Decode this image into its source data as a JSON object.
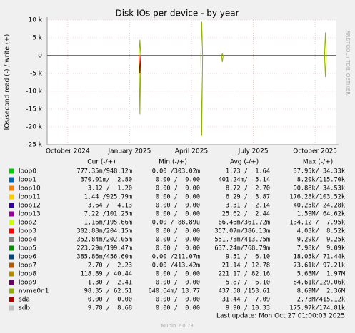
{
  "chart_data": {
    "type": "line",
    "title": "Disk IOs per device - by year",
    "y_label": "IOs/second read (-) / write (+)",
    "side_label": "RRDTOOL / TOBI OETIKER",
    "ylim": [
      -25000,
      10000
    ],
    "yticks": [
      {
        "value": 10000,
        "label": "10 k"
      },
      {
        "value": 5000,
        "label": "5 k"
      },
      0,
      {
        "value": -5000,
        "label": "-5 k"
      },
      {
        "value": -10000,
        "label": "-10 k"
      },
      {
        "value": -15000,
        "label": "-15 k"
      },
      {
        "value": -20000,
        "label": "-20 k"
      },
      {
        "value": -25000,
        "label": "-25 k"
      }
    ],
    "xlim": [
      "2024-09",
      "2025-11"
    ],
    "xticks": [
      {
        "value": "2024-10",
        "label": "October 2024"
      },
      {
        "value": "2025-01",
        "label": "January 2025"
      },
      {
        "value": "2025-04",
        "label": "April 2025"
      },
      {
        "value": "2025-07",
        "label": "July 2025"
      },
      {
        "value": "2025-10",
        "label": "October 2025"
      }
    ],
    "grid": true,
    "x": [
      "2025-01",
      "2025-04",
      "2025-05",
      "2025-10"
    ],
    "columns": [
      "Cur (-/+)",
      "Min (-/+)",
      "Avg (-/+)",
      "Max (-/+)"
    ],
    "series": [
      {
        "name": "loop0",
        "color": "#00cc00",
        "cur": "777.35m/948.12m",
        "min": "0.00 /303.02m",
        "avg": "1.73 /  1.64",
        "max": "37.95k/ 34.33k"
      },
      {
        "name": "loop1",
        "color": "#0066b3",
        "cur": "370.01m/  2.80",
        "min": "0.00 /  0.00",
        "avg": "401.24m/  5.14",
        "max": "8.20k/115.70k"
      },
      {
        "name": "loop10",
        "color": "#ff8000",
        "cur": "3.12 /  1.20",
        "min": "0.00 /  0.00",
        "avg": "8.72 /  2.70",
        "max": "90.88k/ 34.53k"
      },
      {
        "name": "loop11",
        "color": "#ffcc00",
        "cur": "1.44 /925.79m",
        "min": "0.00 /  0.00",
        "avg": "6.29 /  3.87",
        "max": "176.28k/103.52k"
      },
      {
        "name": "loop12",
        "color": "#330099",
        "cur": "3.64 /  4.13",
        "min": "0.00 /  0.00",
        "avg": "3.31 /  2.14",
        "max": "40.25k/ 24.28k"
      },
      {
        "name": "loop13",
        "color": "#990099",
        "cur": "7.22 /101.25m",
        "min": "0.00 /  0.00",
        "avg": "25.62 /  2.44",
        "max": "1.59M/ 64.62k"
      },
      {
        "name": "loop2",
        "color": "#ccff00",
        "cur": "1.16m/195.66m",
        "min": "0.00 / 88.89u",
        "avg": "66.46m/361.72m",
        "max": "134.12 /  7.95k"
      },
      {
        "name": "loop3",
        "color": "#ff0000",
        "cur": "302.88m/204.15m",
        "min": "0.00 /  0.00",
        "avg": "357.07m/386.13m",
        "max": "4.03k/  8.52k"
      },
      {
        "name": "loop4",
        "color": "#808080",
        "cur": "352.84m/202.05m",
        "min": "0.00 /  0.00",
        "avg": "551.78m/413.75m",
        "max": "9.29k/  9.25k"
      },
      {
        "name": "loop5",
        "color": "#008f00",
        "cur": "223.29m/199.47m",
        "min": "0.00 /  0.00",
        "avg": "637.24m/768.79m",
        "max": "7.98k/  9.09k"
      },
      {
        "name": "loop6",
        "color": "#00487d",
        "cur": "385.86m/456.60m",
        "min": "0.00 /211.07m",
        "avg": "9.51 /  6.10",
        "max": "18.05k/ 71.44k"
      },
      {
        "name": "loop7",
        "color": "#b35a00",
        "cur": "2.70 /  2.23",
        "min": "0.00 /413.42m",
        "avg": "21.14 / 12.78",
        "max": "73.61k/ 97.21k"
      },
      {
        "name": "loop8",
        "color": "#b38f00",
        "cur": "118.89 / 40.44",
        "min": "0.00 /  0.00",
        "avg": "221.17 / 82.16",
        "max": "5.63M/  1.97M"
      },
      {
        "name": "loop9",
        "color": "#6b006b",
        "cur": "1.30 /  2.41",
        "min": "0.00 /  0.00",
        "avg": "5.87 /  6.10",
        "max": "84.61k/129.06k"
      },
      {
        "name": "nvme0n1",
        "color": "#8fb300",
        "cur": "98.35 / 62.51",
        "min": "640.64m/ 13.77",
        "avg": "437.58 /153.61",
        "max": "8.69M/  2.36M",
        "values": [
          4500,
          9500,
          500,
          6500
        ],
        "read_values": [
          -16500,
          -22500,
          -1800,
          -6000
        ]
      },
      {
        "name": "sda",
        "color": "#b30000",
        "cur": "0.00 /  0.00",
        "min": "0.00 /  0.00",
        "avg": "31.44 /  7.09",
        "max": "2.73M/415.12k",
        "read_values": [
          -5000,
          null,
          null,
          null
        ]
      },
      {
        "name": "sdb",
        "color": "#bebebe",
        "cur": "9.78 /  8.68",
        "min": "0.00 /  0.00",
        "avg": "9.90 / 10.33",
        "max": "175.97k/174.81k"
      }
    ],
    "last_update": "Last update: Mon Oct 27 01:00:03 2025",
    "footer": "Munin 2.0.73"
  }
}
